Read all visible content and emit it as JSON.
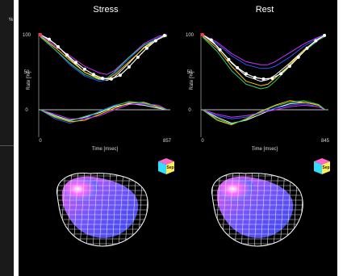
{
  "sidebar": {
    "mark": "%"
  },
  "chart_data": [
    {
      "type": "line",
      "title": "Stress",
      "ylabel": "Rate [%]",
      "xlabel": "Time [msec]",
      "x_start_label": "0",
      "x_end_label": "857",
      "xlim": [
        0,
        857
      ],
      "ylim": [
        -25,
        110
      ],
      "yticks": [
        "100",
        "50",
        "0"
      ],
      "series": [
        {
          "color": "#ffffff",
          "x": [
            0,
            100,
            200,
            300,
            400,
            450,
            500,
            600,
            700,
            800,
            857
          ],
          "values": [
            100,
            88,
            68,
            50,
            41,
            39,
            43,
            62,
            83,
            96,
            100
          ]
        },
        {
          "color": "#3355ff",
          "x": [
            0,
            100,
            200,
            300,
            400,
            450,
            500,
            600,
            700,
            800,
            857
          ],
          "values": [
            100,
            80,
            60,
            45,
            38,
            40,
            48,
            68,
            86,
            96,
            100
          ]
        },
        {
          "color": "#ffcc00",
          "x": [
            0,
            100,
            200,
            300,
            400,
            450,
            500,
            600,
            700,
            800,
            857
          ],
          "values": [
            98,
            83,
            66,
            50,
            42,
            41,
            46,
            64,
            82,
            94,
            99
          ]
        },
        {
          "color": "#cc33ff",
          "x": [
            0,
            100,
            200,
            300,
            400,
            450,
            500,
            600,
            700,
            800,
            857
          ],
          "values": [
            100,
            85,
            72,
            58,
            49,
            47,
            52,
            70,
            88,
            98,
            100
          ]
        },
        {
          "color": "#33cc66",
          "x": [
            0,
            100,
            200,
            300,
            400,
            450,
            500,
            600,
            700,
            800,
            857
          ],
          "values": [
            97,
            80,
            62,
            47,
            40,
            42,
            50,
            70,
            86,
            95,
            98
          ]
        }
      ],
      "lower_series": [
        {
          "color": "#ffffff",
          "x": [
            0,
            100,
            200,
            300,
            400,
            500,
            600,
            700,
            800,
            857
          ],
          "values": [
            0,
            -8,
            -14,
            -10,
            -4,
            4,
            8,
            6,
            2,
            0
          ]
        },
        {
          "color": "#3355ff",
          "x": [
            0,
            100,
            200,
            300,
            400,
            500,
            600,
            700,
            800,
            857
          ],
          "values": [
            0,
            -12,
            -18,
            -12,
            -2,
            6,
            10,
            8,
            4,
            0
          ]
        },
        {
          "color": "#ffcc00",
          "x": [
            0,
            100,
            200,
            300,
            400,
            500,
            600,
            700,
            800,
            857
          ],
          "values": [
            0,
            -10,
            -16,
            -14,
            -6,
            2,
            9,
            10,
            4,
            0
          ]
        },
        {
          "color": "#cc33ff",
          "x": [
            0,
            100,
            200,
            300,
            400,
            500,
            600,
            700,
            800,
            857
          ],
          "values": [
            0,
            -6,
            -12,
            -12,
            -8,
            0,
            7,
            8,
            6,
            0
          ]
        },
        {
          "color": "#33cc66",
          "x": [
            0,
            100,
            200,
            300,
            400,
            500,
            600,
            700,
            800,
            857
          ],
          "values": [
            0,
            -9,
            -15,
            -9,
            -3,
            5,
            11,
            9,
            3,
            0
          ]
        }
      ],
      "marker_series": {
        "color": "#ffffff",
        "x": [
          0,
          60,
          120,
          180,
          240,
          300,
          360,
          420,
          480,
          540,
          600,
          660,
          720,
          780,
          840
        ],
        "values": [
          100,
          94,
          84,
          73,
          63,
          54,
          47,
          42,
          41,
          46,
          57,
          70,
          82,
          92,
          99
        ]
      },
      "start_marker": {
        "color": "#ff3355",
        "x": 0,
        "value": 100
      },
      "cube_label": "Sep"
    },
    {
      "type": "line",
      "title": "Rest",
      "ylabel": "Rate [%]",
      "xlabel": "Time [msec]",
      "x_start_label": "0",
      "x_end_label": "845",
      "xlim": [
        0,
        845
      ],
      "ylim": [
        -25,
        110
      ],
      "yticks": [
        "100",
        "50",
        "0"
      ],
      "series": [
        {
          "color": "#ffffff",
          "x": [
            0,
            100,
            200,
            300,
            400,
            450,
            500,
            600,
            700,
            800,
            845
          ],
          "values": [
            100,
            85,
            62,
            45,
            38,
            40,
            46,
            62,
            80,
            94,
            100
          ]
        },
        {
          "color": "#3355ff",
          "x": [
            0,
            100,
            200,
            300,
            400,
            450,
            500,
            600,
            700,
            800,
            845
          ],
          "values": [
            100,
            88,
            72,
            60,
            55,
            55,
            58,
            70,
            85,
            96,
            100
          ]
        },
        {
          "color": "#ffcc00",
          "x": [
            0,
            100,
            200,
            300,
            400,
            450,
            500,
            600,
            700,
            800,
            845
          ],
          "values": [
            98,
            82,
            58,
            38,
            32,
            34,
            42,
            60,
            80,
            95,
            99
          ]
        },
        {
          "color": "#cc33ff",
          "x": [
            0,
            100,
            200,
            300,
            400,
            450,
            500,
            600,
            700,
            800,
            845
          ],
          "values": [
            100,
            90,
            75,
            64,
            60,
            60,
            64,
            76,
            88,
            97,
            100
          ]
        },
        {
          "color": "#33cc66",
          "x": [
            0,
            100,
            200,
            300,
            400,
            450,
            500,
            600,
            700,
            800,
            845
          ],
          "values": [
            97,
            78,
            52,
            34,
            28,
            30,
            38,
            58,
            78,
            93,
            98
          ]
        }
      ],
      "lower_series": [
        {
          "color": "#ffffff",
          "x": [
            0,
            100,
            200,
            300,
            400,
            500,
            600,
            700,
            800,
            845
          ],
          "values": [
            0,
            -10,
            -18,
            -14,
            -6,
            2,
            8,
            10,
            6,
            0
          ]
        },
        {
          "color": "#3355ff",
          "x": [
            0,
            100,
            200,
            300,
            400,
            500,
            600,
            700,
            800,
            845
          ],
          "values": [
            0,
            -8,
            -12,
            -10,
            -4,
            2,
            6,
            8,
            4,
            0
          ]
        },
        {
          "color": "#ffcc00",
          "x": [
            0,
            100,
            200,
            300,
            400,
            500,
            600,
            700,
            800,
            845
          ],
          "values": [
            0,
            -14,
            -20,
            -12,
            -2,
            6,
            12,
            10,
            6,
            0
          ]
        },
        {
          "color": "#cc33ff",
          "x": [
            0,
            100,
            200,
            300,
            400,
            500,
            600,
            700,
            800,
            845
          ],
          "values": [
            0,
            -6,
            -10,
            -8,
            -4,
            0,
            4,
            6,
            4,
            0
          ]
        },
        {
          "color": "#33cc66",
          "x": [
            0,
            100,
            200,
            300,
            400,
            500,
            600,
            700,
            800,
            845
          ],
          "values": [
            0,
            -12,
            -19,
            -13,
            -3,
            5,
            10,
            12,
            7,
            0
          ]
        }
      ],
      "marker_series": {
        "color": "#ffffff",
        "x": [
          0,
          60,
          120,
          180,
          240,
          300,
          360,
          420,
          480,
          540,
          600,
          660,
          720,
          780,
          840
        ],
        "values": [
          100,
          93,
          80,
          67,
          56,
          48,
          43,
          41,
          42,
          48,
          58,
          70,
          82,
          92,
          99
        ]
      },
      "start_marker": {
        "color": "#ff3355",
        "x": 0,
        "value": 100
      },
      "cube_label": "Sep"
    }
  ]
}
